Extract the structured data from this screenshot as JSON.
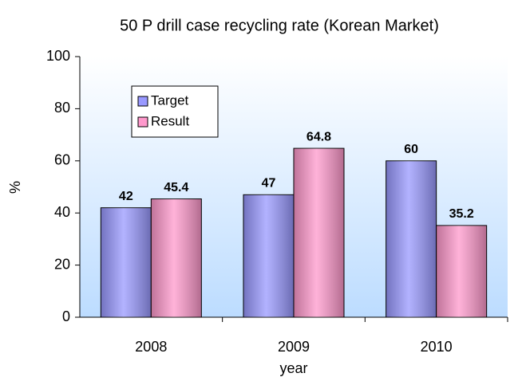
{
  "chart_data": {
    "type": "bar",
    "title": "50 P drill case recycling rate (Korean Market)",
    "x_label": "year",
    "y_label": "%",
    "categories": [
      "2008",
      "2009",
      "2010"
    ],
    "series": [
      {
        "name": "Target",
        "color": "#9999ff",
        "values": [
          42,
          47,
          60
        ]
      },
      {
        "name": "Result",
        "color": "#ff99cc",
        "values": [
          45.4,
          64.8,
          35.2
        ]
      }
    ],
    "ylim": [
      0,
      100
    ],
    "yticks": [
      0,
      20,
      40,
      60,
      80,
      100
    ],
    "legend": "upper left"
  }
}
